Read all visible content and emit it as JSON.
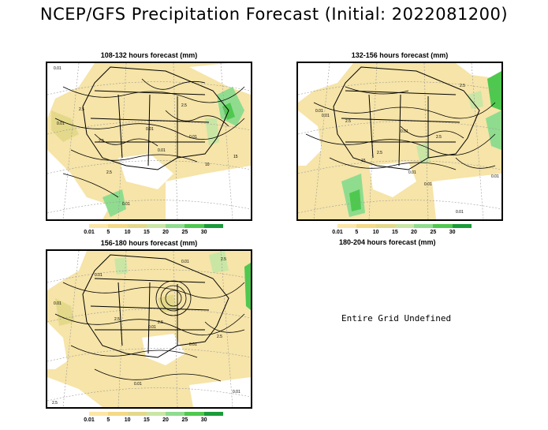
{
  "title": "NCEP/GFS Precipitation Forecast (Initial: 2022081200)",
  "panels": [
    {
      "title": "108-132 hours forecast (mm)",
      "defined": true
    },
    {
      "title": "132-156 hours forecast (mm)",
      "defined": true
    },
    {
      "title": "156-180 hours forecast (mm)",
      "defined": true
    },
    {
      "title": "180-204 hours forecast (mm)",
      "defined": false,
      "note": "Entire Grid Undefined"
    }
  ],
  "legend": {
    "labels": [
      "0.01",
      "5",
      "10",
      "15",
      "20",
      "25",
      "30"
    ],
    "colors": [
      "#fde7a6",
      "#f4d987",
      "#e4d98a",
      "#c9e6a5",
      "#8fdc8f",
      "#4fc84f",
      "#1a9b3a"
    ]
  },
  "map_labels": {
    "panel1": [
      "0.01",
      "0.01",
      "0.01",
      "2.5",
      "2.5",
      "0.01",
      "0.01",
      "2.5",
      "10",
      "0.01",
      "2.5",
      "15"
    ],
    "panel2": [
      "0.01",
      "0.01",
      "2.5",
      "0.01",
      "2.5",
      "0.01",
      "15",
      "0.01",
      "2.5",
      "0.01",
      "2.5",
      "0.01"
    ],
    "panel3": [
      "0.01",
      "0.01",
      "2.5",
      "0.01",
      "2.5",
      "0.01",
      "0.01",
      "2.5",
      "0.01",
      "2.5",
      "0.01",
      "2.5"
    ]
  }
}
